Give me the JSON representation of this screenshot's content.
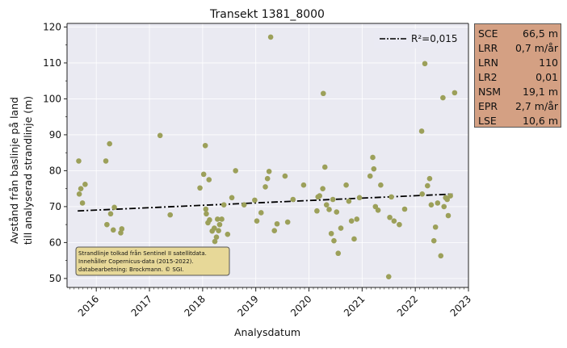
{
  "chart_data": {
    "type": "scatter",
    "title": "Transekt 1381_8000",
    "xlabel": "Analysdatum",
    "ylabel_line1": "Avstånd från baslinje på land",
    "ylabel_line2": "till analyserad strandlinje (m)",
    "xlim": [
      2015.45,
      2023.0
    ],
    "ylim": [
      47.5,
      121
    ],
    "x_ticks": [
      "2016",
      "2017",
      "2018",
      "2019",
      "2020",
      "2021",
      "2022",
      "2023"
    ],
    "y_ticks": [
      "50",
      "60",
      "70",
      "80",
      "90",
      "100",
      "110",
      "120"
    ],
    "grid": true,
    "legend": {
      "label": "R²=0,015",
      "position": "top-right"
    },
    "trend_line": {
      "x_start": 2015.65,
      "y_start": 68.8,
      "x_end": 2022.7,
      "y_end": 73.5
    },
    "annotation": [
      "Strandlinje tolkad från Sentinel II satellitdata.",
      "Innehåller Copernicus-data (2015-2022).",
      "databearbetning: Brockmann. © SGI."
    ],
    "points": [
      [
        2015.67,
        82.7
      ],
      [
        2015.68,
        73.5
      ],
      [
        2015.71,
        75.0
      ],
      [
        2015.74,
        71.0
      ],
      [
        2015.79,
        76.2
      ],
      [
        2016.18,
        82.7
      ],
      [
        2016.2,
        65.0
      ],
      [
        2016.25,
        87.5
      ],
      [
        2016.27,
        68.0
      ],
      [
        2016.32,
        63.5
      ],
      [
        2016.34,
        69.8
      ],
      [
        2016.46,
        62.7
      ],
      [
        2016.48,
        63.8
      ],
      [
        2017.2,
        89.8
      ],
      [
        2017.39,
        67.7
      ],
      [
        2017.95,
        75.2
      ],
      [
        2018.02,
        79.0
      ],
      [
        2018.05,
        87.0
      ],
      [
        2018.06,
        69.3
      ],
      [
        2018.07,
        68.0
      ],
      [
        2018.1,
        65.5
      ],
      [
        2018.12,
        77.5
      ],
      [
        2018.13,
        66.3
      ],
      [
        2018.18,
        63.2
      ],
      [
        2018.22,
        64.0
      ],
      [
        2018.23,
        60.3
      ],
      [
        2018.26,
        61.5
      ],
      [
        2018.28,
        66.5
      ],
      [
        2018.3,
        63.3
      ],
      [
        2018.32,
        65.0
      ],
      [
        2018.36,
        66.5
      ],
      [
        2018.4,
        70.5
      ],
      [
        2018.47,
        62.3
      ],
      [
        2018.55,
        72.5
      ],
      [
        2018.62,
        80.0
      ],
      [
        2018.78,
        70.5
      ],
      [
        2018.98,
        71.8
      ],
      [
        2019.02,
        66.0
      ],
      [
        2019.1,
        68.3
      ],
      [
        2019.18,
        75.5
      ],
      [
        2019.22,
        77.8
      ],
      [
        2019.25,
        79.8
      ],
      [
        2019.28,
        117.2
      ],
      [
        2019.35,
        63.3
      ],
      [
        2019.4,
        65.2
      ],
      [
        2019.55,
        78.5
      ],
      [
        2019.6,
        65.7
      ],
      [
        2019.7,
        72.0
      ],
      [
        2019.9,
        76.0
      ],
      [
        2020.15,
        68.8
      ],
      [
        2020.17,
        72.7
      ],
      [
        2020.2,
        73.0
      ],
      [
        2020.26,
        75.0
      ],
      [
        2020.27,
        101.5
      ],
      [
        2020.3,
        81.0
      ],
      [
        2020.33,
        70.5
      ],
      [
        2020.38,
        69.2
      ],
      [
        2020.42,
        62.5
      ],
      [
        2020.45,
        72.0
      ],
      [
        2020.47,
        60.5
      ],
      [
        2020.52,
        68.5
      ],
      [
        2020.55,
        57.0
      ],
      [
        2020.6,
        64.0
      ],
      [
        2020.7,
        76.0
      ],
      [
        2020.75,
        71.5
      ],
      [
        2020.8,
        66.0
      ],
      [
        2020.85,
        61.0
      ],
      [
        2020.9,
        66.5
      ],
      [
        2020.95,
        72.5
      ],
      [
        2021.15,
        78.5
      ],
      [
        2021.2,
        83.7
      ],
      [
        2021.22,
        80.5
      ],
      [
        2021.25,
        70.0
      ],
      [
        2021.3,
        69.0
      ],
      [
        2021.35,
        76.0
      ],
      [
        2021.5,
        50.5
      ],
      [
        2021.52,
        67.0
      ],
      [
        2021.55,
        72.7
      ],
      [
        2021.6,
        66.0
      ],
      [
        2021.7,
        65.0
      ],
      [
        2021.8,
        69.3
      ],
      [
        2022.12,
        91.0
      ],
      [
        2022.13,
        73.5
      ],
      [
        2022.18,
        109.8
      ],
      [
        2022.23,
        75.8
      ],
      [
        2022.27,
        77.8
      ],
      [
        2022.3,
        70.5
      ],
      [
        2022.35,
        60.5
      ],
      [
        2022.38,
        64.3
      ],
      [
        2022.42,
        71.0
      ],
      [
        2022.48,
        56.3
      ],
      [
        2022.52,
        100.3
      ],
      [
        2022.54,
        70.0
      ],
      [
        2022.57,
        72.5
      ],
      [
        2022.6,
        72.0
      ],
      [
        2022.62,
        67.5
      ],
      [
        2022.66,
        73.0
      ],
      [
        2022.74,
        101.7
      ]
    ]
  },
  "stats": [
    {
      "key": "SCE",
      "value": "66,5 m"
    },
    {
      "key": "LRR",
      "value": "0,7 m/år"
    },
    {
      "key": "LRN",
      "value": "110"
    },
    {
      "key": "LR2",
      "value": "0,01"
    },
    {
      "key": "NSM",
      "value": "19,1 m"
    },
    {
      "key": "EPR",
      "value": "2,7 m/år"
    },
    {
      "key": "LSE",
      "value": "10,6 m"
    }
  ],
  "colors": {
    "plot_bg": "#eaeaf2",
    "grid": "#ffffff",
    "points": "#9ca05a",
    "trend": "#000000",
    "stats_bg": "#d4a083",
    "annotation_bg": "#e7d898"
  }
}
